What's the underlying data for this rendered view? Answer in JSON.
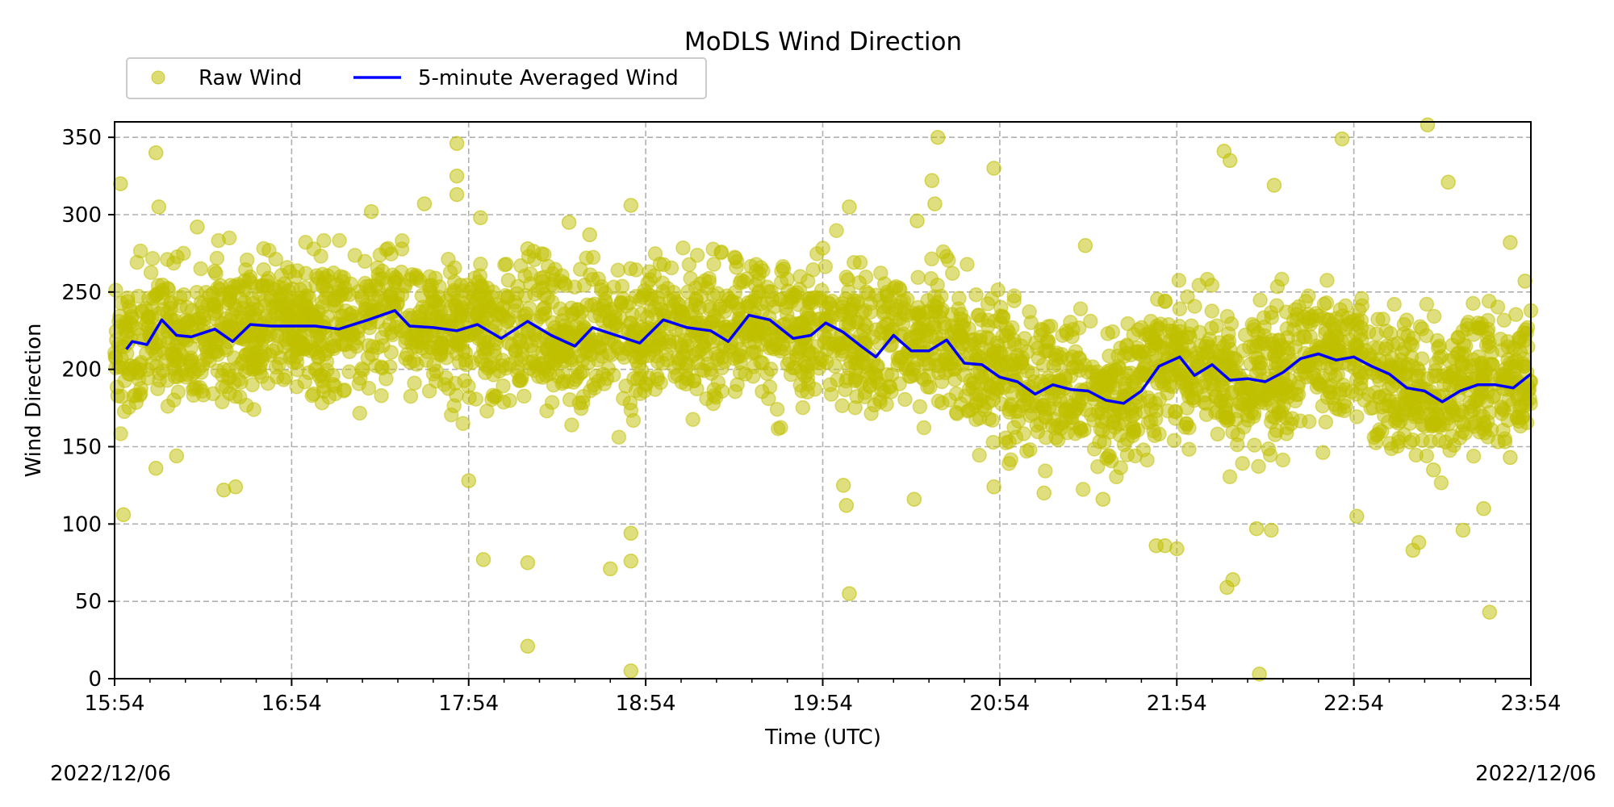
{
  "chart_data": {
    "type": "scatter",
    "title": "MoDLS Wind Direction",
    "xlabel": "Time (UTC)",
    "ylabel": "Wind Direction",
    "xlim": [
      "15:54",
      "23:54"
    ],
    "ylim": [
      0,
      360
    ],
    "x_ticks": [
      "15:54",
      "16:54",
      "17:54",
      "18:54",
      "19:54",
      "20:54",
      "21:54",
      "22:54",
      "23:54"
    ],
    "y_ticks": [
      0,
      50,
      100,
      150,
      200,
      250,
      300,
      350
    ],
    "grid": true,
    "legend_position": "top-left",
    "series": [
      {
        "name": "Raw Wind",
        "kind": "scatter",
        "color": "#bfbf00",
        "opacity": 0.5,
        "typical_range": [
          165,
          255
        ],
        "outliers": [
          {
            "t": "15:56",
            "v": 320
          },
          {
            "t": "15:57",
            "v": 106
          },
          {
            "t": "16:08",
            "v": 136
          },
          {
            "t": "16:08",
            "v": 340
          },
          {
            "t": "16:09",
            "v": 305
          },
          {
            "t": "16:15",
            "v": 144
          },
          {
            "t": "16:22",
            "v": 292
          },
          {
            "t": "16:31",
            "v": 122
          },
          {
            "t": "16:35",
            "v": 124
          },
          {
            "t": "17:21",
            "v": 302
          },
          {
            "t": "17:39",
            "v": 307
          },
          {
            "t": "17:50",
            "v": 346
          },
          {
            "t": "17:50",
            "v": 325
          },
          {
            "t": "17:50",
            "v": 313
          },
          {
            "t": "17:54",
            "v": 128
          },
          {
            "t": "17:58",
            "v": 298
          },
          {
            "t": "17:59",
            "v": 77
          },
          {
            "t": "18:14",
            "v": 21
          },
          {
            "t": "18:14",
            "v": 75
          },
          {
            "t": "18:14",
            "v": 278
          },
          {
            "t": "18:28",
            "v": 295
          },
          {
            "t": "18:35",
            "v": 287
          },
          {
            "t": "18:42",
            "v": 71
          },
          {
            "t": "18:49",
            "v": 306
          },
          {
            "t": "18:49",
            "v": 94
          },
          {
            "t": "18:49",
            "v": 76
          },
          {
            "t": "18:49",
            "v": 5
          },
          {
            "t": "20:03",
            "v": 305
          },
          {
            "t": "20:03",
            "v": 55
          },
          {
            "t": "20:02",
            "v": 112
          },
          {
            "t": "20:01",
            "v": 125
          },
          {
            "t": "20:25",
            "v": 116
          },
          {
            "t": "20:26",
            "v": 296
          },
          {
            "t": "20:31",
            "v": 322
          },
          {
            "t": "20:32",
            "v": 307
          },
          {
            "t": "20:33",
            "v": 350
          },
          {
            "t": "20:52",
            "v": 330
          },
          {
            "t": "20:52",
            "v": 124
          },
          {
            "t": "21:09",
            "v": 120
          },
          {
            "t": "21:29",
            "v": 116
          },
          {
            "t": "21:23",
            "v": 280
          },
          {
            "t": "21:47",
            "v": 86
          },
          {
            "t": "21:50",
            "v": 86
          },
          {
            "t": "21:54",
            "v": 84
          },
          {
            "t": "22:10",
            "v": 341
          },
          {
            "t": "22:12",
            "v": 335
          },
          {
            "t": "22:11",
            "v": 59
          },
          {
            "t": "22:13",
            "v": 64
          },
          {
            "t": "22:22",
            "v": 3
          },
          {
            "t": "22:21",
            "v": 97
          },
          {
            "t": "22:26",
            "v": 96
          },
          {
            "t": "22:27",
            "v": 319
          },
          {
            "t": "22:50",
            "v": 349
          },
          {
            "t": "22:55",
            "v": 105
          },
          {
            "t": "23:14",
            "v": 83
          },
          {
            "t": "23:16",
            "v": 88
          },
          {
            "t": "23:19",
            "v": 358
          },
          {
            "t": "23:21",
            "v": 135
          },
          {
            "t": "23:26",
            "v": 321
          },
          {
            "t": "23:31",
            "v": 96
          },
          {
            "t": "23:38",
            "v": 110
          },
          {
            "t": "23:40",
            "v": 43
          },
          {
            "t": "23:47",
            "v": 282
          },
          {
            "t": "23:47",
            "v": 143
          },
          {
            "t": "23:52",
            "v": 257
          }
        ]
      },
      {
        "name": "5-minute Averaged Wind",
        "kind": "line",
        "color": "#0000ff",
        "x": [
          "15:58",
          "16:00",
          "16:05",
          "16:10",
          "16:15",
          "16:20",
          "16:28",
          "16:34",
          "16:40",
          "16:47",
          "16:55",
          "17:02",
          "17:10",
          "17:20",
          "17:29",
          "17:34",
          "17:42",
          "17:50",
          "17:57",
          "18:05",
          "18:14",
          "18:22",
          "18:30",
          "18:36",
          "18:44",
          "18:52",
          "19:00",
          "19:08",
          "19:16",
          "19:22",
          "19:29",
          "19:36",
          "19:44",
          "19:50",
          "19:55",
          "20:01",
          "20:07",
          "20:12",
          "20:18",
          "20:24",
          "20:30",
          "20:36",
          "20:42",
          "20:48",
          "20:54",
          "21:00",
          "21:06",
          "21:12",
          "21:18",
          "21:24",
          "21:30",
          "21:36",
          "21:42",
          "21:48",
          "21:55",
          "22:00",
          "22:06",
          "22:12",
          "22:18",
          "22:24",
          "22:30",
          "22:36",
          "22:42",
          "22:48",
          "22:54",
          "23:00",
          "23:06",
          "23:12",
          "23:18",
          "23:24",
          "23:30",
          "23:36",
          "23:42",
          "23:48",
          "23:54"
        ],
        "values": [
          213,
          218,
          216,
          232,
          222,
          221,
          226,
          218,
          229,
          228,
          228,
          228,
          226,
          232,
          238,
          228,
          227,
          225,
          229,
          220,
          231,
          222,
          215,
          227,
          222,
          217,
          232,
          227,
          225,
          218,
          235,
          232,
          220,
          222,
          230,
          224,
          215,
          208,
          222,
          212,
          212,
          219,
          204,
          203,
          195,
          192,
          184,
          190,
          187,
          186,
          180,
          178,
          186,
          202,
          208,
          196,
          203,
          193,
          194,
          192,
          198,
          207,
          210,
          206,
          208,
          202,
          197,
          188,
          186,
          179,
          186,
          190,
          190,
          188,
          197
        ]
      }
    ],
    "dates": {
      "start": "2022/12/06",
      "end": "2022/12/06"
    }
  }
}
